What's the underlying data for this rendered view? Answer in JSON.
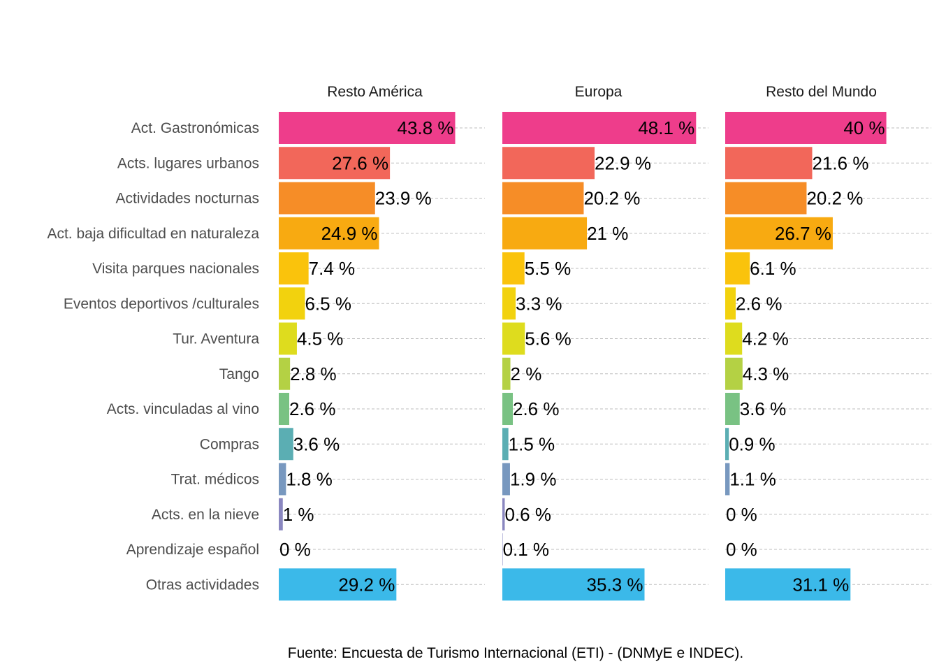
{
  "chart_data": {
    "type": "bar",
    "orientation": "horizontal",
    "grid": "dashed horizontal",
    "legend": "none",
    "caption": "Fuente: Encuesta de Turismo Internacional (ETI) - (DNMyE e INDEC).",
    "categories": [
      "Act. Gastronómicas",
      "Acts. lugares urbanos",
      "Actividades nocturnas",
      "Act. baja dificultad en naturaleza",
      "Visita parques nacionales",
      "Eventos deportivos /culturales",
      "Tur. Aventura",
      "Tango",
      "Acts. vinculadas al vino",
      "Compras",
      "Trat. médicos",
      "Acts. en la nieve",
      "Aprendizaje español",
      "Otras actividades"
    ],
    "colors": [
      "#EE3D8B",
      "#F2675A",
      "#F68D27",
      "#F8AA11",
      "#FAC30C",
      "#F2D20E",
      "#DEDC1E",
      "#B4D144",
      "#79C283",
      "#5BAEB3",
      "#7898BF",
      "#8A87C0",
      "#8E8EC6",
      "#3BB9E9"
    ],
    "xlim": [
      0,
      50
    ],
    "series": [
      {
        "name": "Resto América",
        "values": [
          43.8,
          27.6,
          23.9,
          24.9,
          7.4,
          6.5,
          4.5,
          2.8,
          2.6,
          3.6,
          1.8,
          1,
          0,
          29.2
        ],
        "labels": [
          "43.8 %",
          "27.6 %",
          "23.9 %",
          "24.9 %",
          "7.4 %",
          "6.5 %",
          "4.5 %",
          "2.8 %",
          "2.6 %",
          "3.6 %",
          "1.8 %",
          "1 %",
          "0 %",
          "29.2 %"
        ]
      },
      {
        "name": "Europa",
        "values": [
          48.1,
          22.9,
          20.2,
          21,
          5.5,
          3.3,
          5.6,
          2,
          2.6,
          1.5,
          1.9,
          0.6,
          0.1,
          35.3
        ],
        "labels": [
          "48.1 %",
          "22.9 %",
          "20.2 %",
          "21 %",
          "5.5 %",
          "3.3 %",
          "5.6 %",
          "2 %",
          "2.6 %",
          "1.5 %",
          "1.9 %",
          "0.6 %",
          "0.1 %",
          "35.3 %"
        ]
      },
      {
        "name": "Resto del Mundo",
        "values": [
          40,
          21.6,
          20.2,
          26.7,
          6.1,
          2.6,
          4.2,
          4.3,
          3.6,
          0.9,
          1.1,
          0,
          0,
          31.1
        ],
        "labels": [
          "40 %",
          "21.6 %",
          "20.2 %",
          "26.7 %",
          "6.1 %",
          "2.6 %",
          "4.2 %",
          "4.3 %",
          "3.6 %",
          "0.9 %",
          "1.1 %",
          "0 %",
          "0 %",
          "31.1 %"
        ]
      }
    ]
  }
}
